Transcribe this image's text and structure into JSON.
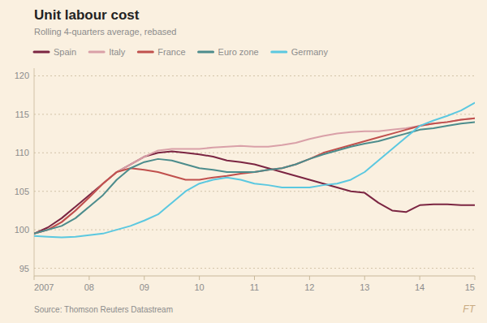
{
  "chart_data": {
    "type": "line",
    "title": "Unit labour cost",
    "subtitle": "Rolling 4-quarters average, rebased",
    "annotations": [
      "Source: Thomson Reuters Datastream",
      "FT"
    ],
    "x": [
      2007.0,
      2007.25,
      2007.5,
      2007.75,
      2008.0,
      2008.25,
      2008.5,
      2008.75,
      2009.0,
      2009.25,
      2009.5,
      2009.75,
      2010.0,
      2010.25,
      2010.5,
      2010.75,
      2011.0,
      2011.25,
      2011.5,
      2011.75,
      2012.0,
      2012.25,
      2012.5,
      2012.75,
      2013.0,
      2013.25,
      2013.5,
      2013.75,
      2014.0,
      2014.25,
      2014.5,
      2014.75,
      2015.0
    ],
    "series": [
      {
        "name": "Spain",
        "color": "#7b2542",
        "values": [
          99.5,
          100.3,
          101.5,
          103.0,
          104.5,
          106.0,
          107.5,
          108.5,
          109.5,
          110.0,
          110.2,
          110.0,
          109.8,
          109.5,
          109.0,
          108.8,
          108.5,
          108.0,
          107.5,
          107.0,
          106.5,
          106.0,
          105.5,
          105.0,
          104.8,
          103.5,
          102.5,
          102.3,
          103.2,
          103.3,
          103.3,
          103.2,
          103.2
        ]
      },
      {
        "name": "Italy",
        "color": "#d9a0a8",
        "values": [
          99.5,
          100.0,
          101.0,
          102.5,
          104.2,
          106.0,
          107.5,
          108.5,
          109.5,
          110.3,
          110.5,
          110.5,
          110.5,
          110.7,
          110.8,
          110.9,
          110.8,
          110.8,
          111.0,
          111.3,
          111.8,
          112.2,
          112.5,
          112.7,
          112.8,
          112.8,
          113.0,
          113.2,
          113.5,
          113.8,
          114.0,
          114.3,
          114.5
        ]
      },
      {
        "name": "France",
        "color": "#c0504d",
        "values": [
          99.5,
          100.0,
          101.0,
          102.5,
          104.2,
          106.0,
          107.5,
          108.0,
          107.8,
          107.5,
          107.0,
          106.5,
          106.5,
          106.8,
          107.0,
          107.3,
          107.5,
          107.8,
          108.0,
          108.5,
          109.2,
          110.0,
          110.5,
          111.0,
          111.5,
          112.0,
          112.5,
          113.0,
          113.5,
          113.8,
          114.0,
          114.3,
          114.5
        ]
      },
      {
        "name": "Euro zone",
        "color": "#4c8c8c",
        "values": [
          99.5,
          100.0,
          100.5,
          101.5,
          103.0,
          104.5,
          106.5,
          108.0,
          108.8,
          109.2,
          109.0,
          108.5,
          108.0,
          107.8,
          107.5,
          107.5,
          107.5,
          107.8,
          108.0,
          108.5,
          109.2,
          109.8,
          110.3,
          110.8,
          111.2,
          111.5,
          112.0,
          112.5,
          113.0,
          113.2,
          113.5,
          113.8,
          114.0
        ]
      },
      {
        "name": "Germany",
        "color": "#5bc8e0",
        "values": [
          99.2,
          99.1,
          99.0,
          99.1,
          99.3,
          99.5,
          100.0,
          100.5,
          101.2,
          102.0,
          103.5,
          105.0,
          106.0,
          106.5,
          106.8,
          106.5,
          106.0,
          105.8,
          105.5,
          105.5,
          105.5,
          105.8,
          106.0,
          106.5,
          107.5,
          109.0,
          110.5,
          112.0,
          113.5,
          114.2,
          114.8,
          115.5,
          116.5
        ]
      }
    ],
    "xlim": [
      2007,
      2015
    ],
    "xticks": [
      2007,
      {
        "value": 2008,
        "label": "08"
      },
      {
        "value": 2009,
        "label": "09"
      },
      {
        "value": 2010,
        "label": "10"
      },
      {
        "value": 2011,
        "label": "11"
      },
      {
        "value": 2012,
        "label": "12"
      },
      {
        "value": 2013,
        "label": "13"
      },
      {
        "value": 2014,
        "label": "14"
      },
      {
        "value": 2015,
        "label": "15"
      }
    ],
    "ylim": [
      94,
      121
    ],
    "yticks": [
      95,
      100,
      105,
      110,
      115,
      120
    ],
    "grid": true,
    "legend": "upper left"
  }
}
